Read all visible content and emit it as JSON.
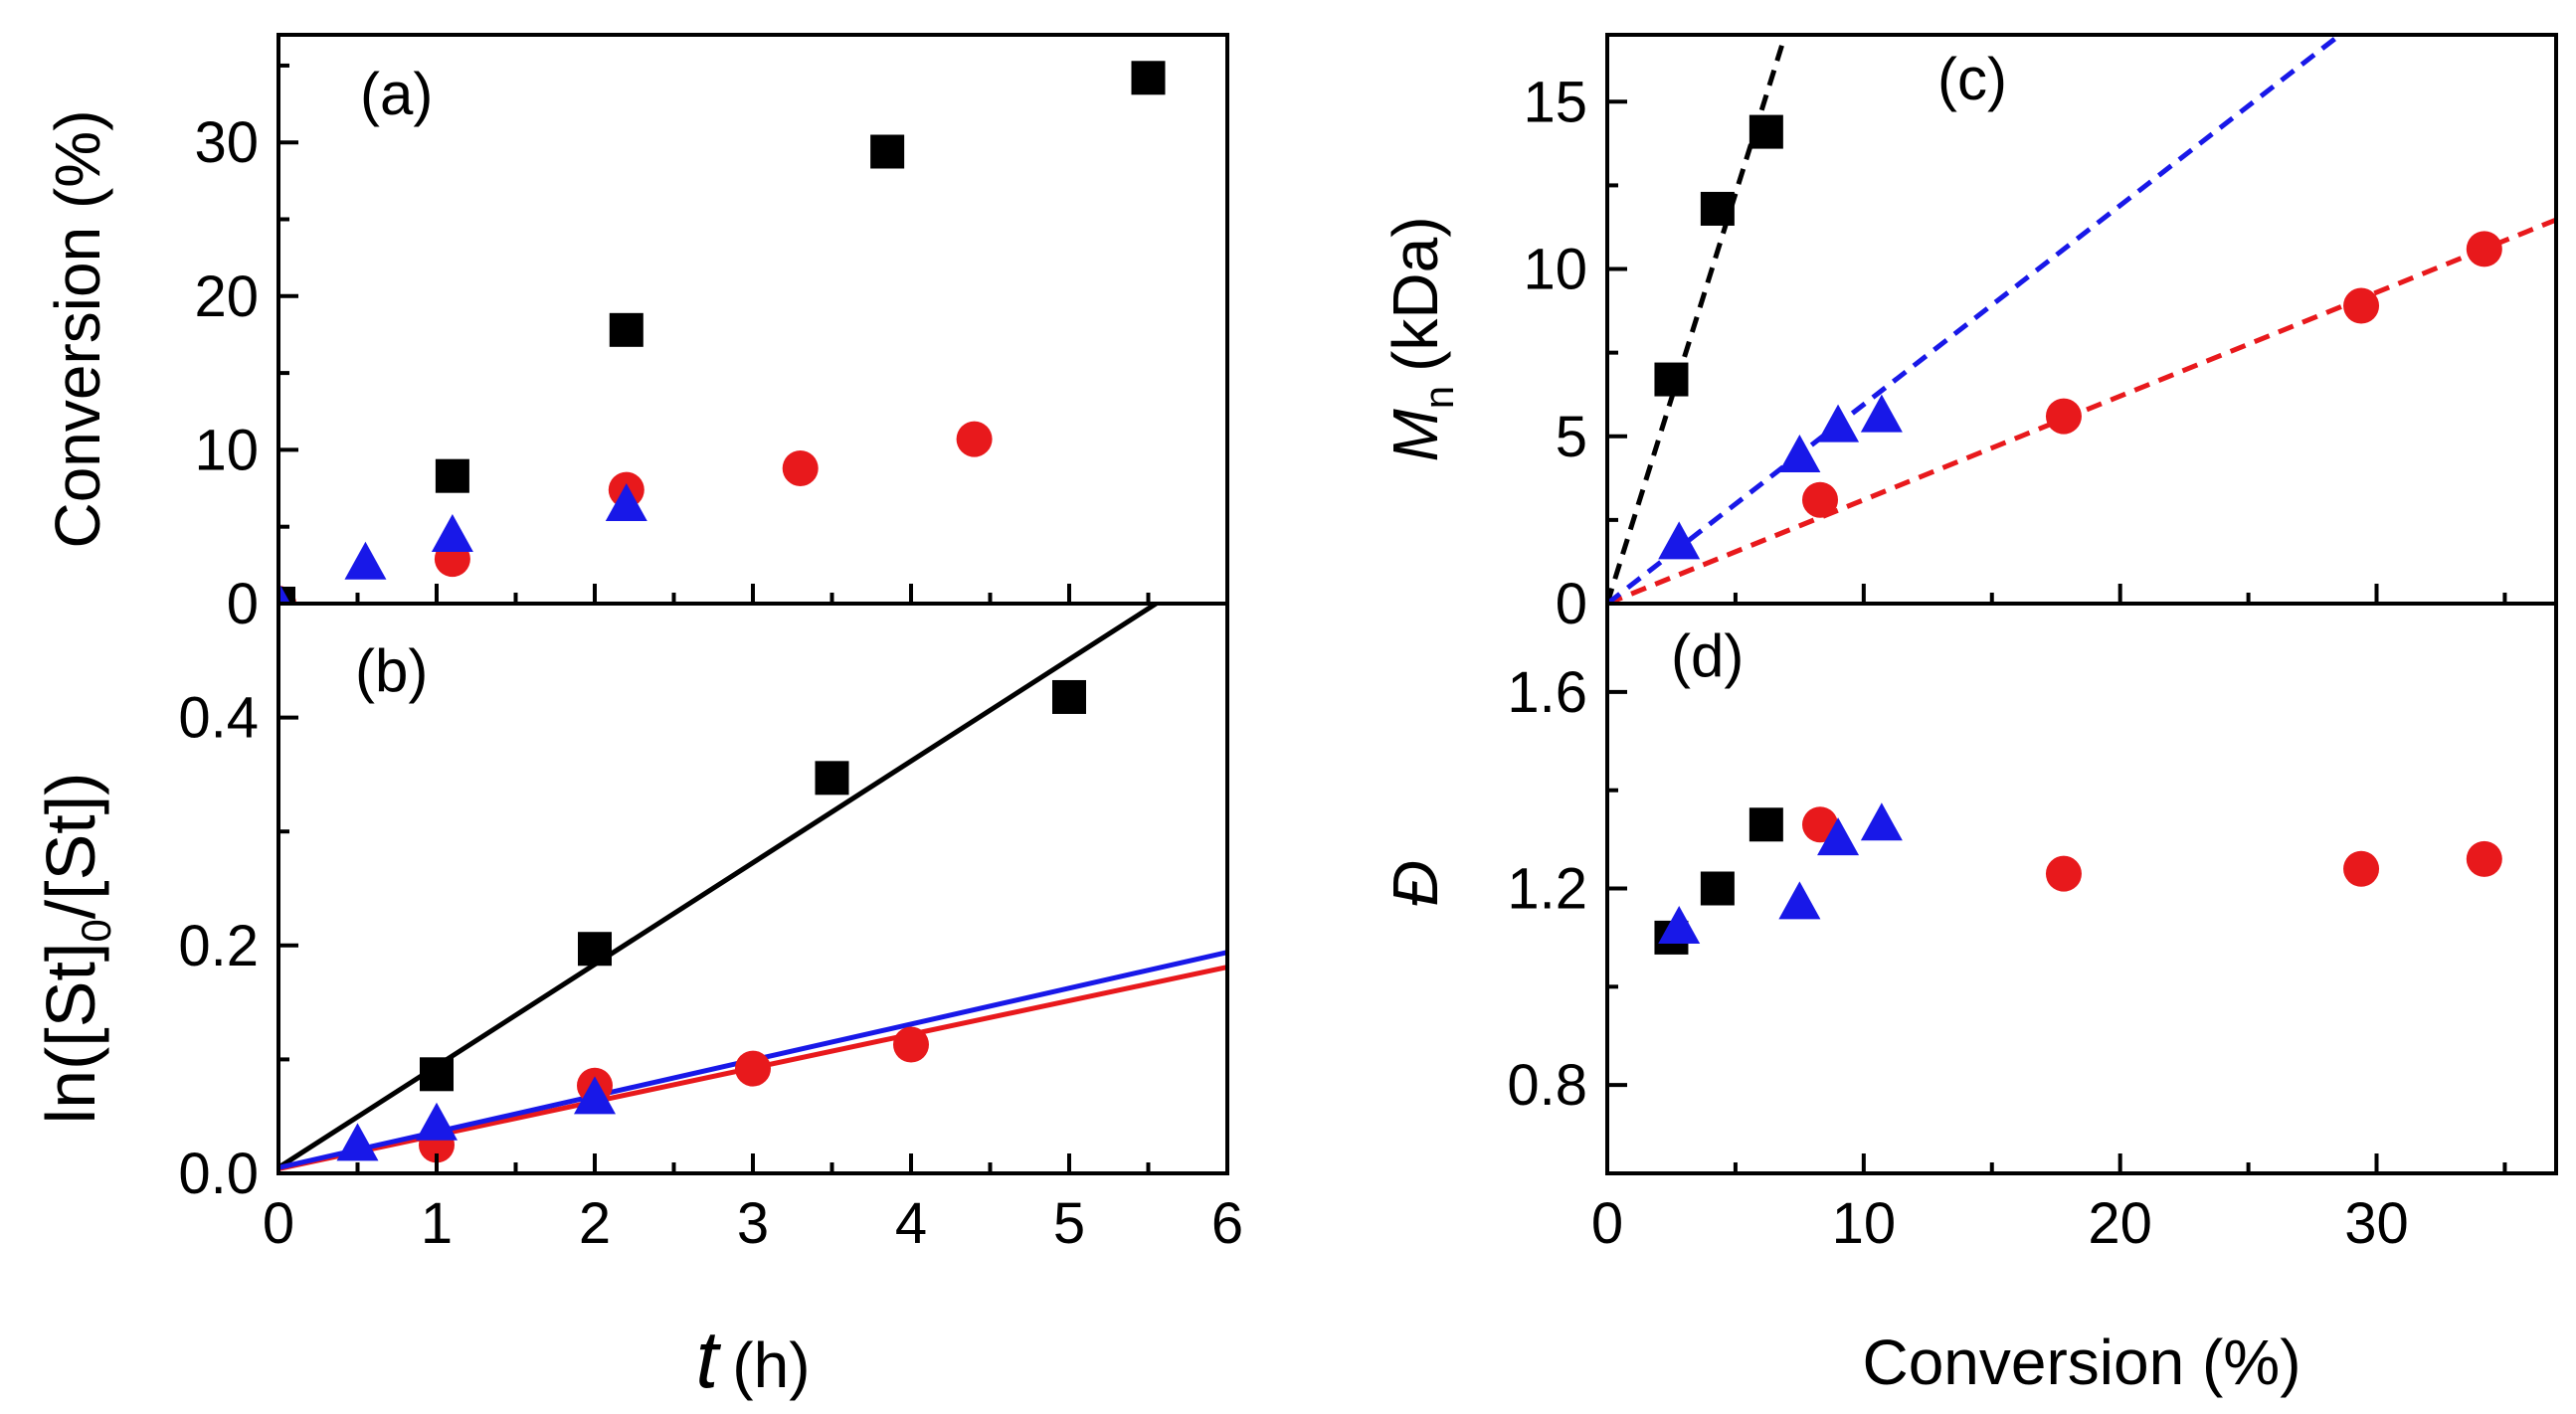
{
  "chart_data": [
    {
      "panel": "a",
      "type": "scatter",
      "label": "(a)",
      "xlabel": "",
      "ylabel": "Conversion (%)",
      "xlim": [
        0,
        6
      ],
      "ylim": [
        0,
        37
      ],
      "yticks": [
        "0",
        "10",
        "20",
        "30"
      ],
      "series": [
        {
          "name": "squares",
          "marker": "square",
          "color": "#000000",
          "x": [
            0,
            1.1,
            2.2,
            3.85,
            5.5
          ],
          "y": [
            0,
            8.3,
            17.8,
            29.4,
            34.2
          ]
        },
        {
          "name": "circles",
          "marker": "circle",
          "color": "#e8191c",
          "x": [
            0,
            1.1,
            2.2,
            3.3,
            4.4
          ],
          "y": [
            0,
            2.9,
            7.4,
            8.8,
            10.7
          ]
        },
        {
          "name": "triangles",
          "marker": "triangle",
          "color": "#1818e8",
          "x": [
            0,
            0.55,
            1.1,
            2.2
          ],
          "y": [
            0,
            2.6,
            4.4,
            6.4
          ]
        }
      ]
    },
    {
      "panel": "b",
      "type": "scatter",
      "label": "(b)",
      "xlabel": "t",
      "xlabel_unit": "(h)",
      "ylabel": "ln([St]",
      "ylabel_sub": "0",
      "ylabel_end": "/[St])",
      "xlim": [
        0,
        6
      ],
      "ylim": [
        0,
        0.5
      ],
      "xticks": [
        "0",
        "1",
        "2",
        "3",
        "4",
        "5",
        "6"
      ],
      "yticks": [
        "0.0",
        "0.2",
        "0.4"
      ],
      "series": [
        {
          "name": "squares",
          "marker": "square",
          "color": "#000000",
          "x": [
            1,
            2,
            3.5,
            5
          ],
          "y": [
            0.087,
            0.197,
            0.347,
            0.418
          ],
          "fit": {
            "slope": 0.0892,
            "intercept": 0.005
          }
        },
        {
          "name": "circles",
          "marker": "circle",
          "color": "#e8191c",
          "x": [
            1,
            2,
            3,
            4
          ],
          "y": [
            0.025,
            0.077,
            0.092,
            0.113
          ],
          "fit": {
            "slope": 0.0295,
            "intercept": 0.004
          }
        },
        {
          "name": "triangles",
          "marker": "triangle",
          "color": "#1818e8",
          "x": [
            0.5,
            1,
            2
          ],
          "y": [
            0.025,
            0.043,
            0.066
          ],
          "fit": {
            "slope": 0.0315,
            "intercept": 0.005
          }
        }
      ]
    },
    {
      "panel": "c",
      "type": "scatter",
      "label": "(c)",
      "xlabel": "",
      "ylabel": "M",
      "ylabel_sub": "n",
      "ylabel_unit": "(kDa)",
      "xlim": [
        0,
        37
      ],
      "ylim": [
        0,
        17
      ],
      "yticks": [
        "0",
        "5",
        "10",
        "15"
      ],
      "series": [
        {
          "name": "squares",
          "marker": "square",
          "color": "#000000",
          "x": [
            2.5,
            4.3,
            6.2
          ],
          "y": [
            6.7,
            11.8,
            14.1
          ],
          "fit": {
            "slope": 2.45,
            "intercept": 0,
            "style": "dashed"
          }
        },
        {
          "name": "circles",
          "marker": "circle",
          "color": "#e8191c",
          "x": [
            8.3,
            17.8,
            29.4,
            34.2
          ],
          "y": [
            3.1,
            5.6,
            8.9,
            10.6
          ],
          "fit": {
            "slope": 0.31,
            "intercept": 0,
            "style": "dashed"
          }
        },
        {
          "name": "triangles",
          "marker": "triangle",
          "color": "#1818e8",
          "x": [
            2.8,
            7.5,
            9.0,
            10.7
          ],
          "y": [
            1.8,
            4.4,
            5.3,
            5.6
          ],
          "fit": {
            "slope": 0.595,
            "intercept": 0,
            "style": "dashed"
          }
        }
      ]
    },
    {
      "panel": "d",
      "type": "scatter",
      "label": "(d)",
      "xlabel": "Conversion (%)",
      "ylabel": "Đ",
      "xlim": [
        0,
        37
      ],
      "ylim": [
        0.62,
        1.78
      ],
      "xticks": [
        "0",
        "10",
        "20",
        "30"
      ],
      "yticks": [
        "0.8",
        "1.2",
        "1.6"
      ],
      "series": [
        {
          "name": "squares",
          "marker": "square",
          "color": "#000000",
          "x": [
            2.5,
            4.3,
            6.2
          ],
          "y": [
            1.1,
            1.2,
            1.33
          ]
        },
        {
          "name": "circles",
          "marker": "circle",
          "color": "#e8191c",
          "x": [
            8.3,
            17.8,
            29.4,
            34.2
          ],
          "y": [
            1.33,
            1.23,
            1.24,
            1.26
          ]
        },
        {
          "name": "triangles",
          "marker": "triangle",
          "color": "#1818e8",
          "x": [
            2.8,
            7.5,
            9.0,
            10.7
          ],
          "y": [
            1.12,
            1.17,
            1.3,
            1.33
          ]
        }
      ]
    }
  ]
}
